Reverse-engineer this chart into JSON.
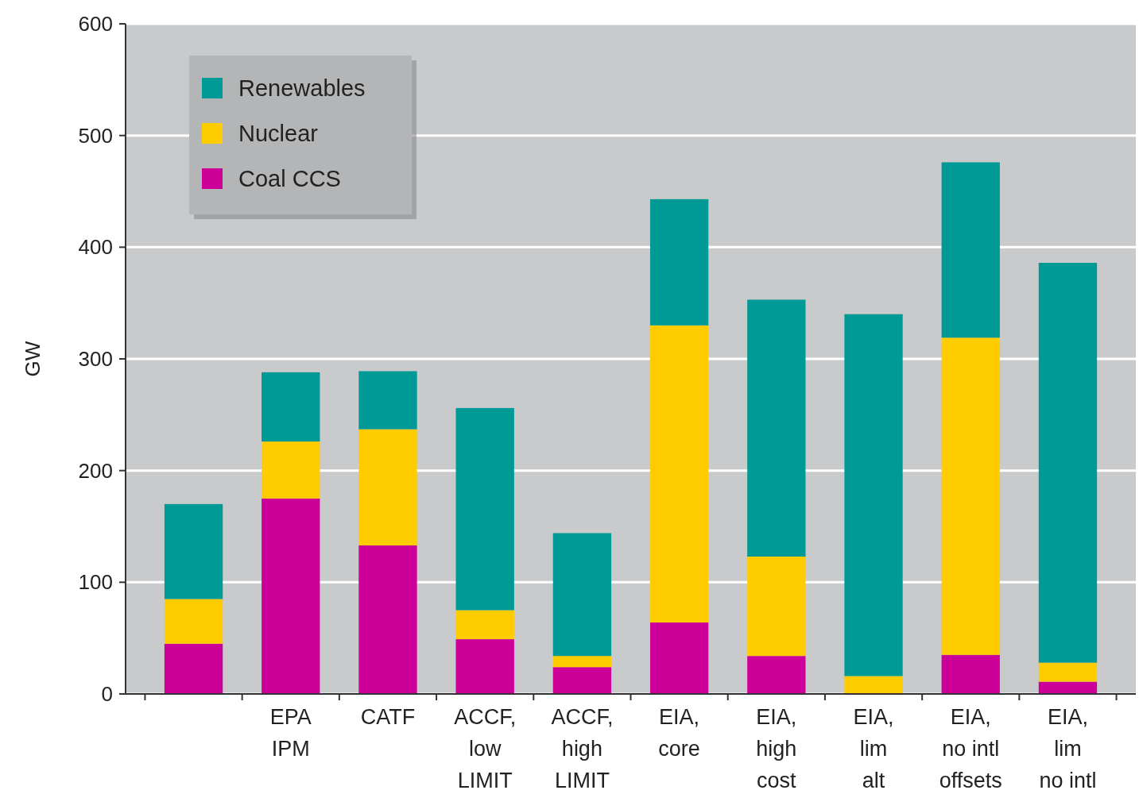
{
  "chart_data": {
    "type": "bar",
    "stacked": true,
    "ylabel": "GW",
    "categories": [
      null,
      "EPA\nIPM",
      "CATF",
      "ACCF,\nlow\nLIMIT",
      "ACCF,\nhigh\nLIMIT",
      "EIA,\ncore",
      "EIA,\nhigh\ncost",
      "EIA,\nlim\nalt",
      "EIA,\nno intl\noffsets",
      "EIA,\nlim\nno intl"
    ],
    "series": [
      {
        "name": "Coal CCS",
        "color": "#cc0099",
        "values": [
          45,
          175,
          133,
          49,
          24,
          64,
          34,
          0,
          35,
          11
        ]
      },
      {
        "name": "Nuclear",
        "color": "#ffcc00",
        "values": [
          40,
          51,
          104,
          26,
          10,
          266,
          89,
          16,
          284,
          17
        ]
      },
      {
        "name": "Renewables",
        "color": "#009a96",
        "values": [
          85,
          62,
          52,
          181,
          110,
          113,
          230,
          324,
          157,
          358
        ]
      }
    ],
    "ylim": [
      0,
      600
    ],
    "yticks": [
      0,
      100,
      200,
      300,
      400,
      500,
      600
    ],
    "grid": "y",
    "legend": "top left"
  }
}
